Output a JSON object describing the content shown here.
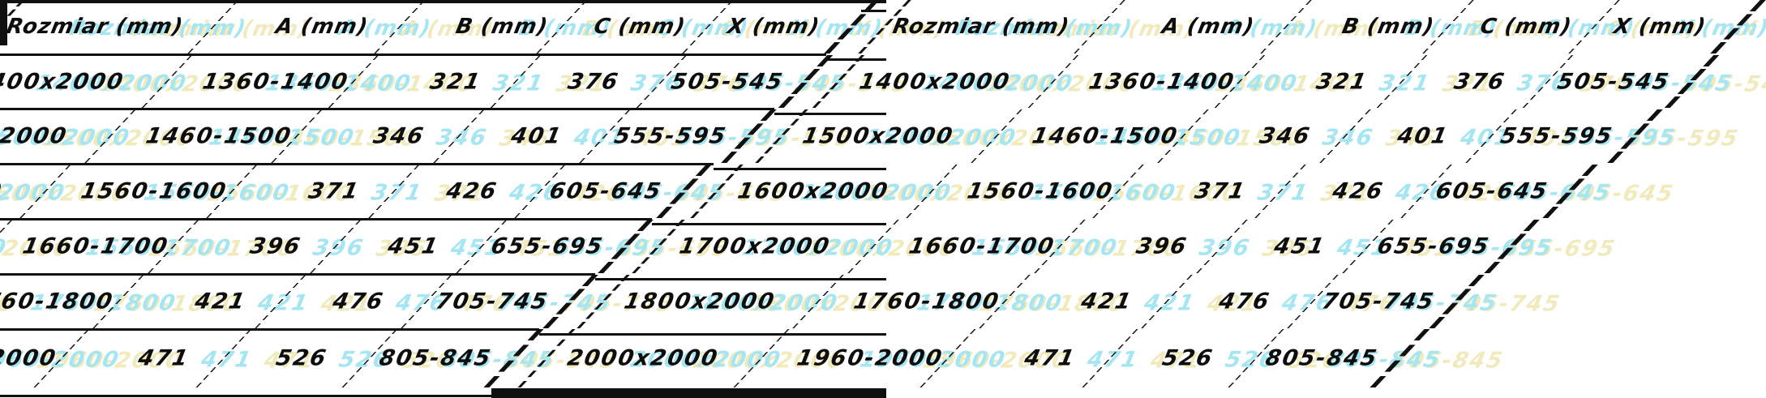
{
  "table": {
    "columns": [
      "Rozmiar (mm)",
      "A (mm)",
      "B (mm)",
      "C (mm)",
      "X (mm)"
    ],
    "rows": [
      [
        "1400x2000",
        "1360-1400",
        "321",
        "376",
        "505-545"
      ],
      [
        "1500x2000",
        "1460-1500",
        "346",
        "401",
        "555-595"
      ],
      [
        "1600x2000",
        "1560-1600",
        "371",
        "426",
        "605-645"
      ],
      [
        "1700x2000",
        "1660-1700",
        "396",
        "451",
        "655-695"
      ],
      [
        "1800x2000",
        "1760-1800",
        "421",
        "476",
        "705-745"
      ],
      [
        "2000x2000",
        "1960-2000",
        "471",
        "526",
        "805-845"
      ]
    ]
  },
  "colors": {
    "text": "#0d0d0d",
    "border": "#101010",
    "background": "#ffffff",
    "ghost_cyan": "#a5e6f2",
    "ghost_yellow": "#f0eabc"
  }
}
